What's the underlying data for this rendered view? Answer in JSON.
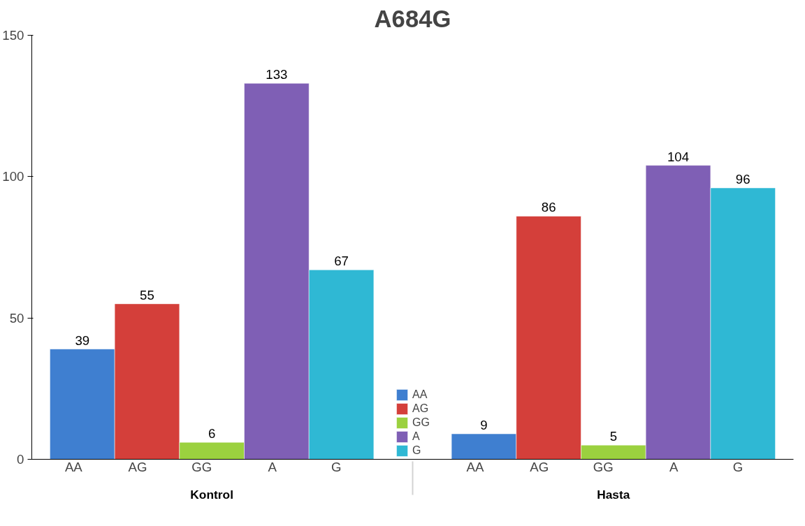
{
  "chart_data": {
    "type": "bar",
    "title": "A684G",
    "categories": [
      "Kontrol",
      "Hasta"
    ],
    "series": [
      {
        "name": "AA",
        "color": "#3f7fd0",
        "values": [
          39,
          9
        ]
      },
      {
        "name": "AG",
        "color": "#d43f3a",
        "values": [
          55,
          86
        ]
      },
      {
        "name": "GG",
        "color": "#9bd13f",
        "values": [
          6,
          5
        ]
      },
      {
        "name": "A",
        "color": "#7f5fb5",
        "values": [
          133,
          104
        ]
      },
      {
        "name": "G",
        "color": "#2fb8d4",
        "values": [
          67,
          96
        ]
      }
    ],
    "ylim": [
      0,
      150
    ],
    "yticks": [
      0,
      50,
      100,
      150
    ],
    "grid": false,
    "legend": "bottom",
    "data_labels": true
  }
}
